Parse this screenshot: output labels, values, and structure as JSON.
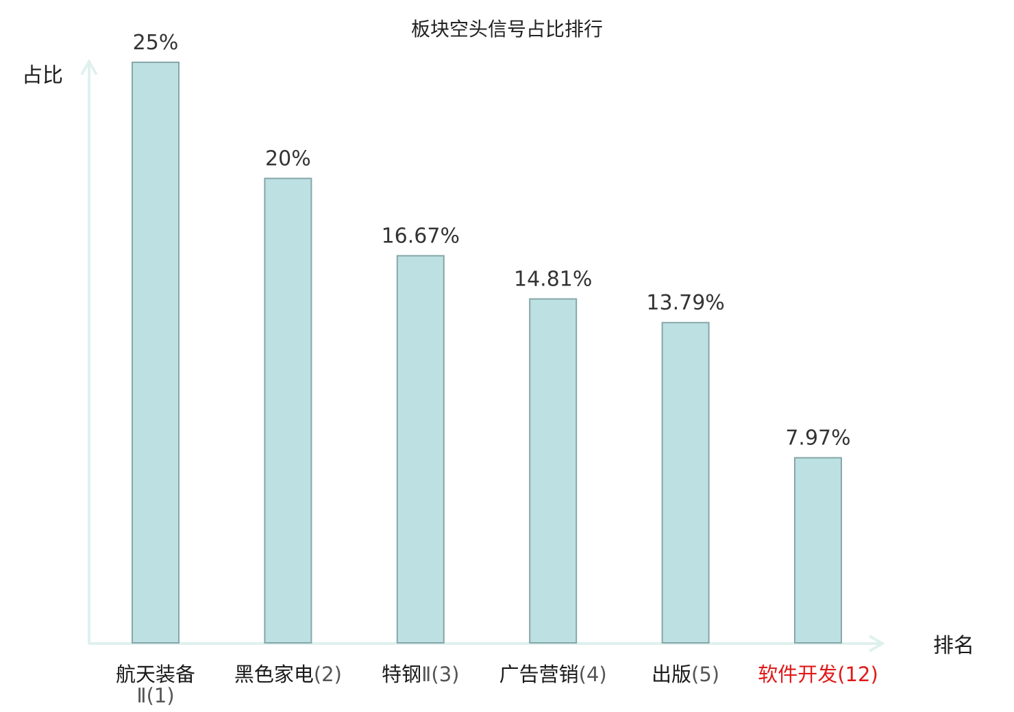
{
  "chart_data": {
    "type": "bar",
    "title": "板块空头信号占比排行",
    "ylabel": "占比",
    "xlabel": "排名",
    "categories": [
      {
        "name": "航天装备",
        "rank": "Ⅱ(1)",
        "highlight": false
      },
      {
        "name": "黑色家电",
        "rank": "(2)",
        "highlight": false
      },
      {
        "name": "特钢",
        "rank": "Ⅱ(3)",
        "highlight": false
      },
      {
        "name": "广告营销",
        "rank": "(4)",
        "highlight": false
      },
      {
        "name": "出版",
        "rank": "(5)",
        "highlight": false
      },
      {
        "name": "软件开发",
        "rank": "(12)",
        "highlight": true
      }
    ],
    "values": [
      25,
      20,
      16.67,
      14.81,
      13.79,
      7.97
    ],
    "value_labels": [
      "25%",
      "20%",
      "16.67%",
      "14.81%",
      "13.79%",
      "7.97%"
    ],
    "ylim": [
      0,
      25
    ],
    "grid": false,
    "legend": "none",
    "colors": {
      "bar_fill": "#bde0e3",
      "bar_stroke": "#86a6a8",
      "axis": "#dff1ee",
      "highlight_text": "#e01818",
      "normal_text": "#1a1a1a",
      "rank_text": "#555555"
    }
  }
}
